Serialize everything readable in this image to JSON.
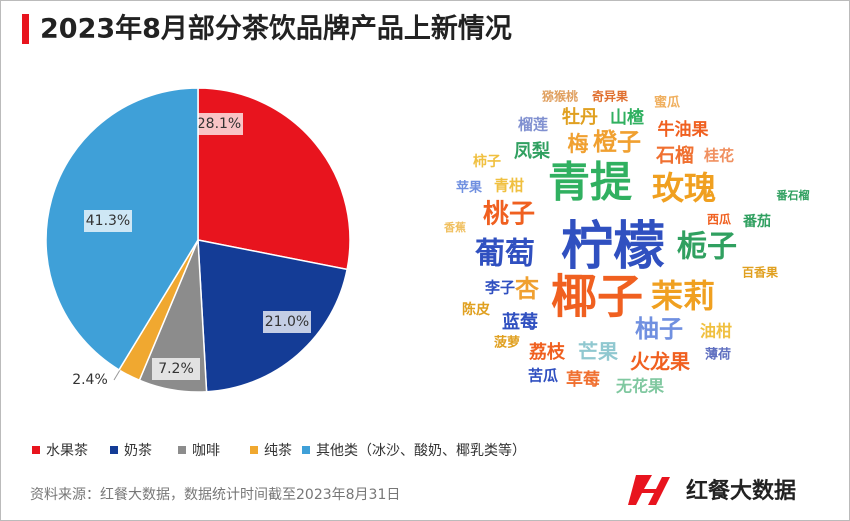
{
  "title": "2023年8月部分茶饮品牌产品上新情况",
  "source": "资料来源：红餐大数据，数据统计时间截至2023年8月31日",
  "brand": "红餐大数据",
  "chart_data": [
    {
      "type": "pie",
      "categories": [
        "水果茶",
        "奶茶",
        "咖啡",
        "纯茶",
        "其他类（冰沙、酸奶、椰乳类等）"
      ],
      "values": [
        28.1,
        21.0,
        7.2,
        2.4,
        41.3
      ],
      "value_labels": [
        "28.1%",
        "21.0%",
        "7.2%",
        "2.4%",
        "41.3%"
      ],
      "colors": [
        "#e8141e",
        "#143c96",
        "#8c8c8c",
        "#f0a830",
        "#3fa0d8"
      ],
      "legend": "bottom"
    },
    {
      "type": "wordcloud",
      "words": [
        "猕猴桃",
        "奇异果",
        "蜜瓜",
        "榴莲",
        "牡丹",
        "山楂",
        "牛油果",
        "梅",
        "橙子",
        "石榴",
        "桂花",
        "凤梨",
        "柿子",
        "青提",
        "玫瑰",
        "番石榴",
        "苹果",
        "青柑",
        "桃子",
        "西瓜",
        "番茄",
        "香蕉",
        "葡萄",
        "柠檬",
        "栀子",
        "百香果",
        "李子",
        "杏",
        "椰子",
        "茉莉",
        "陈皮",
        "蓝莓",
        "柚子",
        "油柑",
        "菠萝",
        "荔枝",
        "芒果",
        "火龙果",
        "薄荷",
        "苦瓜",
        "草莓",
        "无花果"
      ]
    }
  ]
}
